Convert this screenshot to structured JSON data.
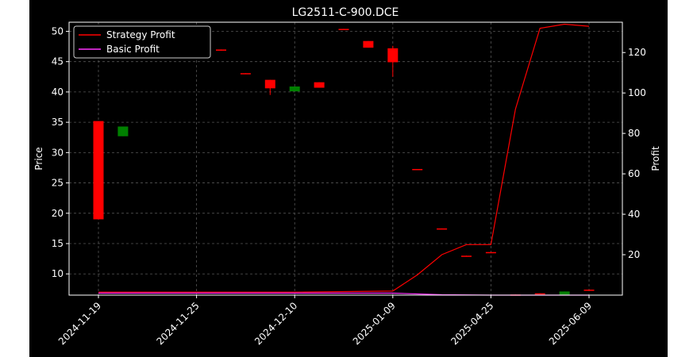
{
  "chart_data": {
    "type": "candlestick",
    "title": "LG2511-C-900.DCE",
    "ylabel": "Price",
    "y2label": "Profit",
    "ylim": [
      6.5,
      51.5
    ],
    "y2lim": [
      0,
      135
    ],
    "yticks": [
      10,
      15,
      20,
      25,
      30,
      35,
      40,
      45,
      50
    ],
    "y2ticks": [
      20,
      40,
      60,
      80,
      100,
      120
    ],
    "grid": true,
    "legend_position": "upper-left",
    "x_tick_labels": [
      {
        "index": 0,
        "label": "2024-11-19"
      },
      {
        "index": 4,
        "label": "2024-11-25"
      },
      {
        "index": 8,
        "label": "2024-12-10"
      },
      {
        "index": 12,
        "label": "2025-01-09"
      },
      {
        "index": 16,
        "label": "2025-04-25"
      },
      {
        "index": 20,
        "label": "2025-06-09"
      }
    ],
    "candles": [
      {
        "i": 0,
        "open": 35.2,
        "close": 19.0,
        "high": 35.2,
        "low": 19.0
      },
      {
        "i": 1,
        "open": 32.7,
        "close": 34.3,
        "high": 34.3,
        "low": 32.7
      },
      {
        "i": 4,
        "open": 49.7,
        "close": 49.3,
        "high": 50.2,
        "low": 49.2
      },
      {
        "i": 5,
        "open": 47.0,
        "close": 46.8,
        "high": 47.0,
        "low": 46.8
      },
      {
        "i": 6,
        "open": 43.1,
        "close": 43.0,
        "high": 43.1,
        "low": 43.0
      },
      {
        "i": 7,
        "open": 42.0,
        "close": 40.6,
        "high": 42.0,
        "low": 39.5
      },
      {
        "i": 8,
        "open": 40.1,
        "close": 40.9,
        "high": 40.9,
        "low": 40.1
      },
      {
        "i": 9,
        "open": 41.6,
        "close": 40.7,
        "high": 41.6,
        "low": 40.7
      },
      {
        "i": 10,
        "open": 50.4,
        "close": 50.3,
        "high": 50.4,
        "low": 50.3
      },
      {
        "i": 11,
        "open": 48.4,
        "close": 47.3,
        "high": 48.4,
        "low": 47.3
      },
      {
        "i": 12,
        "open": 47.2,
        "close": 44.9,
        "high": 47.6,
        "low": 42.5
      },
      {
        "i": 13,
        "open": 27.3,
        "close": 27.2,
        "high": 27.3,
        "low": 27.2
      },
      {
        "i": 14,
        "open": 17.5,
        "close": 17.4,
        "high": 17.5,
        "low": 17.4
      },
      {
        "i": 15,
        "open": 13.0,
        "close": 12.9,
        "high": 13.0,
        "low": 12.9
      },
      {
        "i": 16,
        "open": 13.6,
        "close": 13.5,
        "high": 13.6,
        "low": 13.5
      },
      {
        "i": 17,
        "open": 6.6,
        "close": 6.55,
        "high": 6.6,
        "low": 6.55
      },
      {
        "i": 18,
        "open": 6.8,
        "close": 6.7,
        "high": 6.8,
        "low": 6.7
      },
      {
        "i": 19,
        "open": 6.5,
        "close": 7.1,
        "high": 7.1,
        "low": 6.5
      },
      {
        "i": 20,
        "open": 7.4,
        "close": 7.3,
        "high": 7.4,
        "low": 7.3
      }
    ],
    "series": [
      {
        "name": "Strategy Profit",
        "color": "#ff0000",
        "x": [
          0,
          4,
          8,
          12,
          13,
          14,
          15,
          16,
          17,
          18,
          19,
          20
        ],
        "values": [
          1.5,
          1.5,
          1.5,
          2.0,
          10.0,
          20.0,
          25.0,
          25.0,
          92.0,
          132.0,
          134.0,
          133.0
        ]
      },
      {
        "name": "Basic Profit",
        "color": "#ff33ff",
        "x": [
          0,
          4,
          8,
          12,
          14,
          16,
          20
        ],
        "values": [
          1.0,
          1.0,
          1.0,
          1.0,
          0.2,
          0.0,
          0.0
        ]
      }
    ],
    "up_color": "#008000",
    "down_color": "#ff0000"
  }
}
